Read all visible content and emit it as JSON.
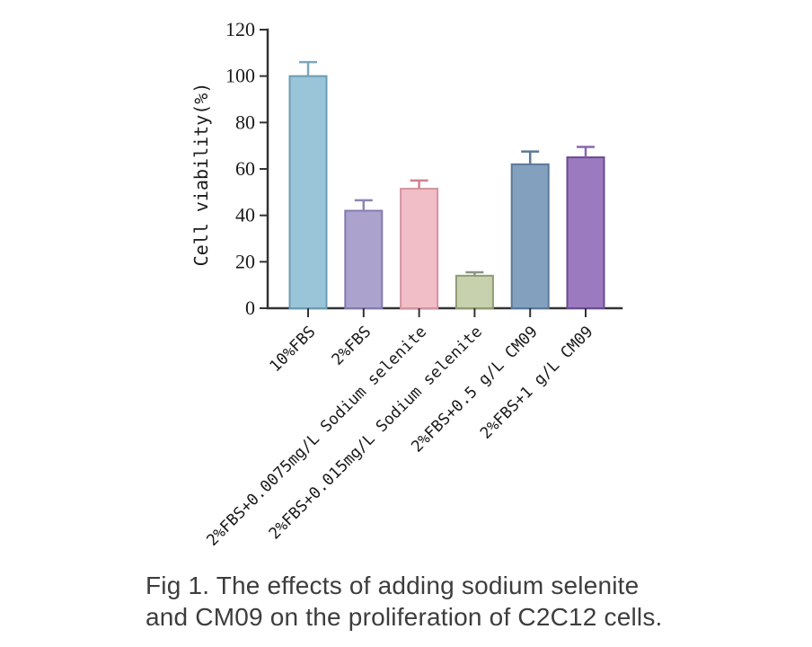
{
  "figure": {
    "caption_line1": "Fig 1. The effects of adding sodium selenite",
    "caption_line2": "and CM09 on the proliferation of C2C12 cells."
  },
  "chart_data": {
    "type": "bar",
    "title": "",
    "xlabel": "",
    "ylabel": "Cell viability(%)",
    "ylim": [
      0,
      120
    ],
    "yticks": [
      0,
      20,
      40,
      60,
      80,
      100,
      120
    ],
    "grid": false,
    "legend": "none",
    "categories": [
      "10%FBS",
      "2%FBS",
      "2%FBS+0.0075mg/L Sodium selenite",
      "2%FBS+0.015mg/L Sodium selenite",
      "2%FBS+0.5 g/L CM09",
      "2%FBS+1 g/L CM09"
    ],
    "values": [
      100,
      42,
      51.5,
      14,
      62,
      65
    ],
    "errors": [
      6,
      4.5,
      3.5,
      1.5,
      5.5,
      4.5
    ],
    "bar_fill_colors": [
      "#9ac4d8",
      "#aba3cd",
      "#f1bdc6",
      "#c7d1ad",
      "#84a0bf",
      "#9b7ac0"
    ],
    "bar_edge_colors": [
      "#6d9cb3",
      "#837bad",
      "#d494a0",
      "#8e9b74",
      "#5a7898",
      "#6a4b8f"
    ],
    "error_colors": [
      "#7ea6ba",
      "#8d86b5",
      "#d2808f",
      "#8a9383",
      "#5a7898",
      "#8a67ae"
    ],
    "axis_color": "#333333",
    "tick_label_color": "#1a1a1a"
  }
}
